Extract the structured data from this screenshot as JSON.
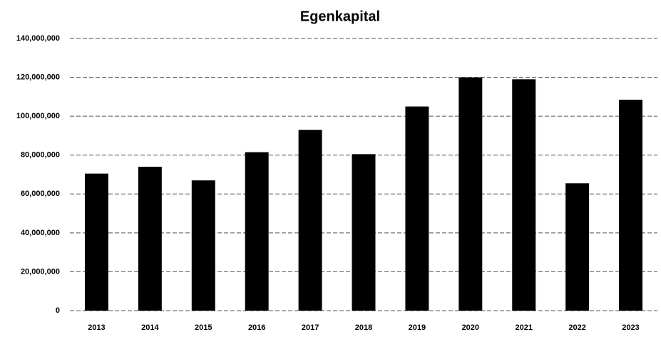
{
  "chart_data": {
    "type": "bar",
    "title": "Egenkapital",
    "categories": [
      "2013",
      "2014",
      "2015",
      "2016",
      "2017",
      "2018",
      "2019",
      "2020",
      "2021",
      "2022",
      "2023"
    ],
    "values": [
      70500000,
      74000000,
      67000000,
      81500000,
      93000000,
      80500000,
      105000000,
      120000000,
      119000000,
      65500000,
      108500000
    ],
    "color": "#000000",
    "ylim": [
      0,
      140000000
    ],
    "yticks": [
      0,
      {
        "value": 20000000,
        "label": "20,000,000"
      },
      {
        "value": 40000000,
        "label": "40,000,000"
      },
      {
        "value": 60000000,
        "label": "60,000,000"
      },
      {
        "value": 80000000,
        "label": "80,000,000"
      },
      {
        "value": 100000000,
        "label": "100,000,000"
      },
      {
        "value": 120000000,
        "label": "120,000,000"
      },
      {
        "value": 140000000,
        "label": "140,000,000"
      }
    ],
    "grid": true
  }
}
